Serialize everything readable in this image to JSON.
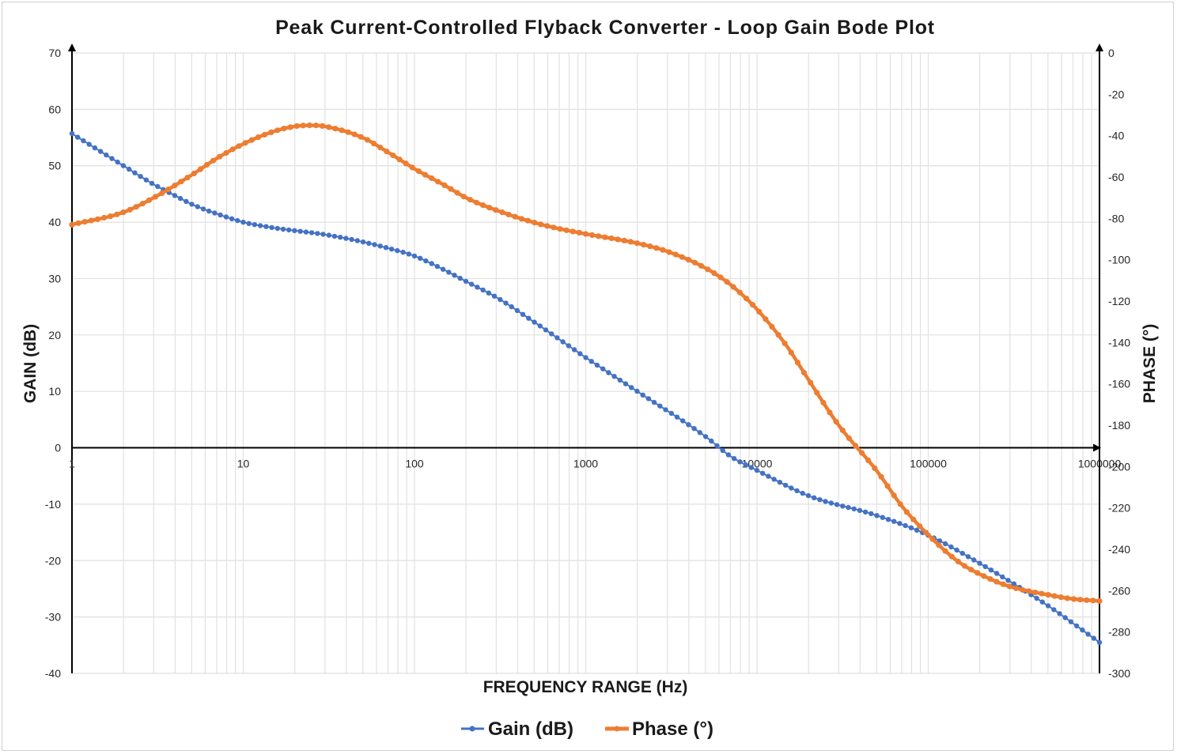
{
  "chart_data": {
    "type": "line",
    "title": "Peak Current-Controlled Flyback Converter - Loop Gain Bode Plot",
    "xlabel": "FREQUENCY RANGE (Hz)",
    "ylabel": "GAIN (dB)",
    "y2label": "PHASE (°)",
    "x_scale": "log",
    "xlim": [
      1,
      1000000
    ],
    "ylim": [
      -40,
      70
    ],
    "y2lim": [
      -300,
      0
    ],
    "x_ticks": [
      "1",
      "10",
      "100",
      "1000",
      "10000",
      "100000",
      "1000000"
    ],
    "y_ticks": [
      "-40",
      "-30",
      "-20",
      "-10",
      "0",
      "10",
      "20",
      "30",
      "40",
      "50",
      "60",
      "70"
    ],
    "y2_ticks": [
      "-300",
      "-280",
      "-260",
      "-240",
      "-220",
      "-200",
      "-180",
      "-160",
      "-140",
      "-120",
      "-100",
      "-80",
      "-60",
      "-40",
      "-20",
      "0"
    ],
    "grid": true,
    "legend_position": "bottom",
    "series": [
      {
        "name": "Gain (dB)",
        "axis": "left",
        "color": "#4472C4",
        "x": [
          1,
          2,
          3,
          4,
          5,
          6,
          7,
          8,
          10,
          15,
          20,
          30,
          50,
          70,
          100,
          150,
          200,
          300,
          500,
          1000,
          2000,
          5000,
          7000,
          10000,
          20000,
          50000,
          100000,
          200000,
          500000,
          1000000
        ],
        "values": [
          55.7,
          50.0,
          46.7,
          44.7,
          43.2,
          42.2,
          41.5,
          40.9,
          40.0,
          39.0,
          38.5,
          37.8,
          36.5,
          35.4,
          34.0,
          31.5,
          29.5,
          26.7,
          22.3,
          16.0,
          10.0,
          2.0,
          -1.5,
          -4.0,
          -8.5,
          -12.0,
          -15.5,
          -20.5,
          -28.0,
          -34.5
        ]
      },
      {
        "name": "Phase (°)",
        "axis": "right",
        "color": "#ED7D31",
        "x": [
          1,
          2,
          3,
          5,
          7,
          10,
          15,
          20,
          25,
          30,
          50,
          70,
          100,
          150,
          200,
          300,
          500,
          700,
          1000,
          2000,
          3000,
          5000,
          7000,
          10000,
          15000,
          20000,
          30000,
          50000,
          70000,
          100000,
          150000,
          200000,
          300000,
          500000,
          700000,
          1000000
        ],
        "values": [
          -83,
          -77,
          -70,
          -59,
          -51,
          -44,
          -38,
          -35.5,
          -35,
          -35.5,
          -41,
          -48,
          -56,
          -64,
          -70,
          -76,
          -82,
          -85,
          -87.5,
          -92,
          -96,
          -104,
          -112,
          -124,
          -142,
          -158,
          -180,
          -202,
          -219,
          -233,
          -246,
          -252,
          -258,
          -262,
          -264,
          -265
        ]
      }
    ]
  }
}
